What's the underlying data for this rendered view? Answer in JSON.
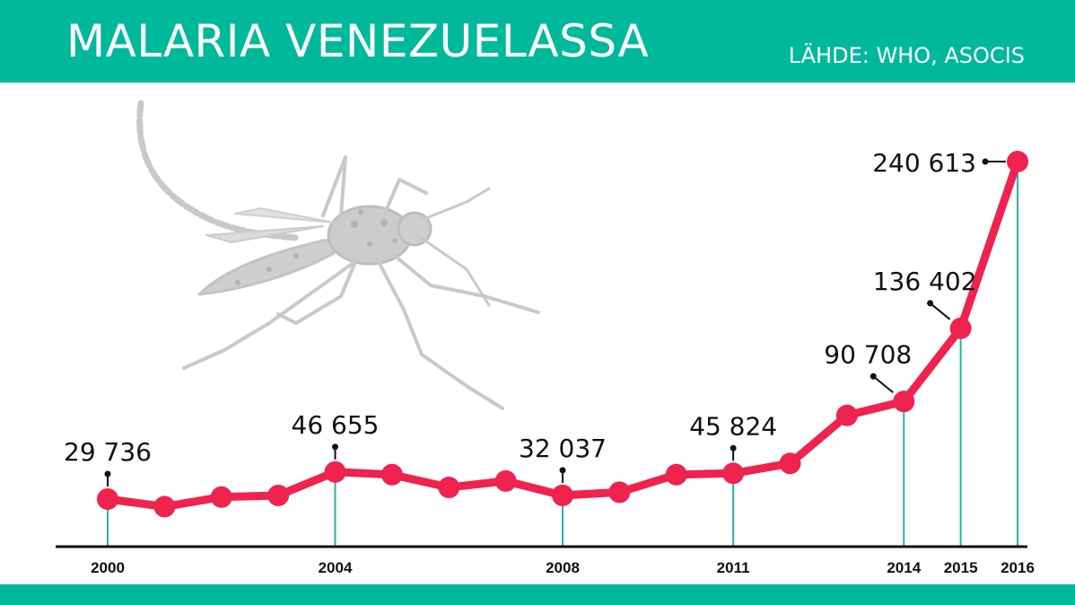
{
  "header": {
    "title": "MALARIA VENEZUELASSA",
    "source": "LÄHDE: WHO, ASOCIS"
  },
  "colors": {
    "header_bg": "#00b89a",
    "line": "#f0224e",
    "drop_line": "#2bb39a",
    "axis": "#111111",
    "illustration": "#c9c9c9"
  },
  "illustration": {
    "icon": "mosquito-icon"
  },
  "chart_data": {
    "type": "line",
    "title": "",
    "xlabel": "",
    "ylabel": "",
    "x": [
      2000,
      2001,
      2002,
      2003,
      2004,
      2005,
      2006,
      2007,
      2008,
      2009,
      2010,
      2011,
      2012,
      2013,
      2014,
      2015,
      2016
    ],
    "y": [
      29736,
      25000,
      31000,
      32000,
      46655,
      45000,
      37000,
      41000,
      32037,
      34000,
      45000,
      45824,
      52000,
      82000,
      90708,
      136402,
      240613
    ],
    "ylim": [
      0,
      270000
    ],
    "xlim": [
      2000,
      2016
    ],
    "x_ticks": [
      "2000",
      "2004",
      "2008",
      "2011",
      "2014",
      "2015",
      "2016"
    ],
    "labels": [
      {
        "x": 2000,
        "text": "29 736",
        "side": "above"
      },
      {
        "x": 2004,
        "text": "46 655",
        "side": "above"
      },
      {
        "x": 2008,
        "text": "32 037",
        "side": "above"
      },
      {
        "x": 2011,
        "text": "45 824",
        "side": "above"
      },
      {
        "x": 2014,
        "text": "90 708",
        "side": "upper-left"
      },
      {
        "x": 2015,
        "text": "136 402",
        "side": "upper-left"
      },
      {
        "x": 2016,
        "text": "240 613",
        "side": "left"
      }
    ],
    "drop_lines_at": [
      2000,
      2004,
      2008,
      2011,
      2014,
      2015,
      2016
    ],
    "grid": false,
    "legend": "none"
  }
}
